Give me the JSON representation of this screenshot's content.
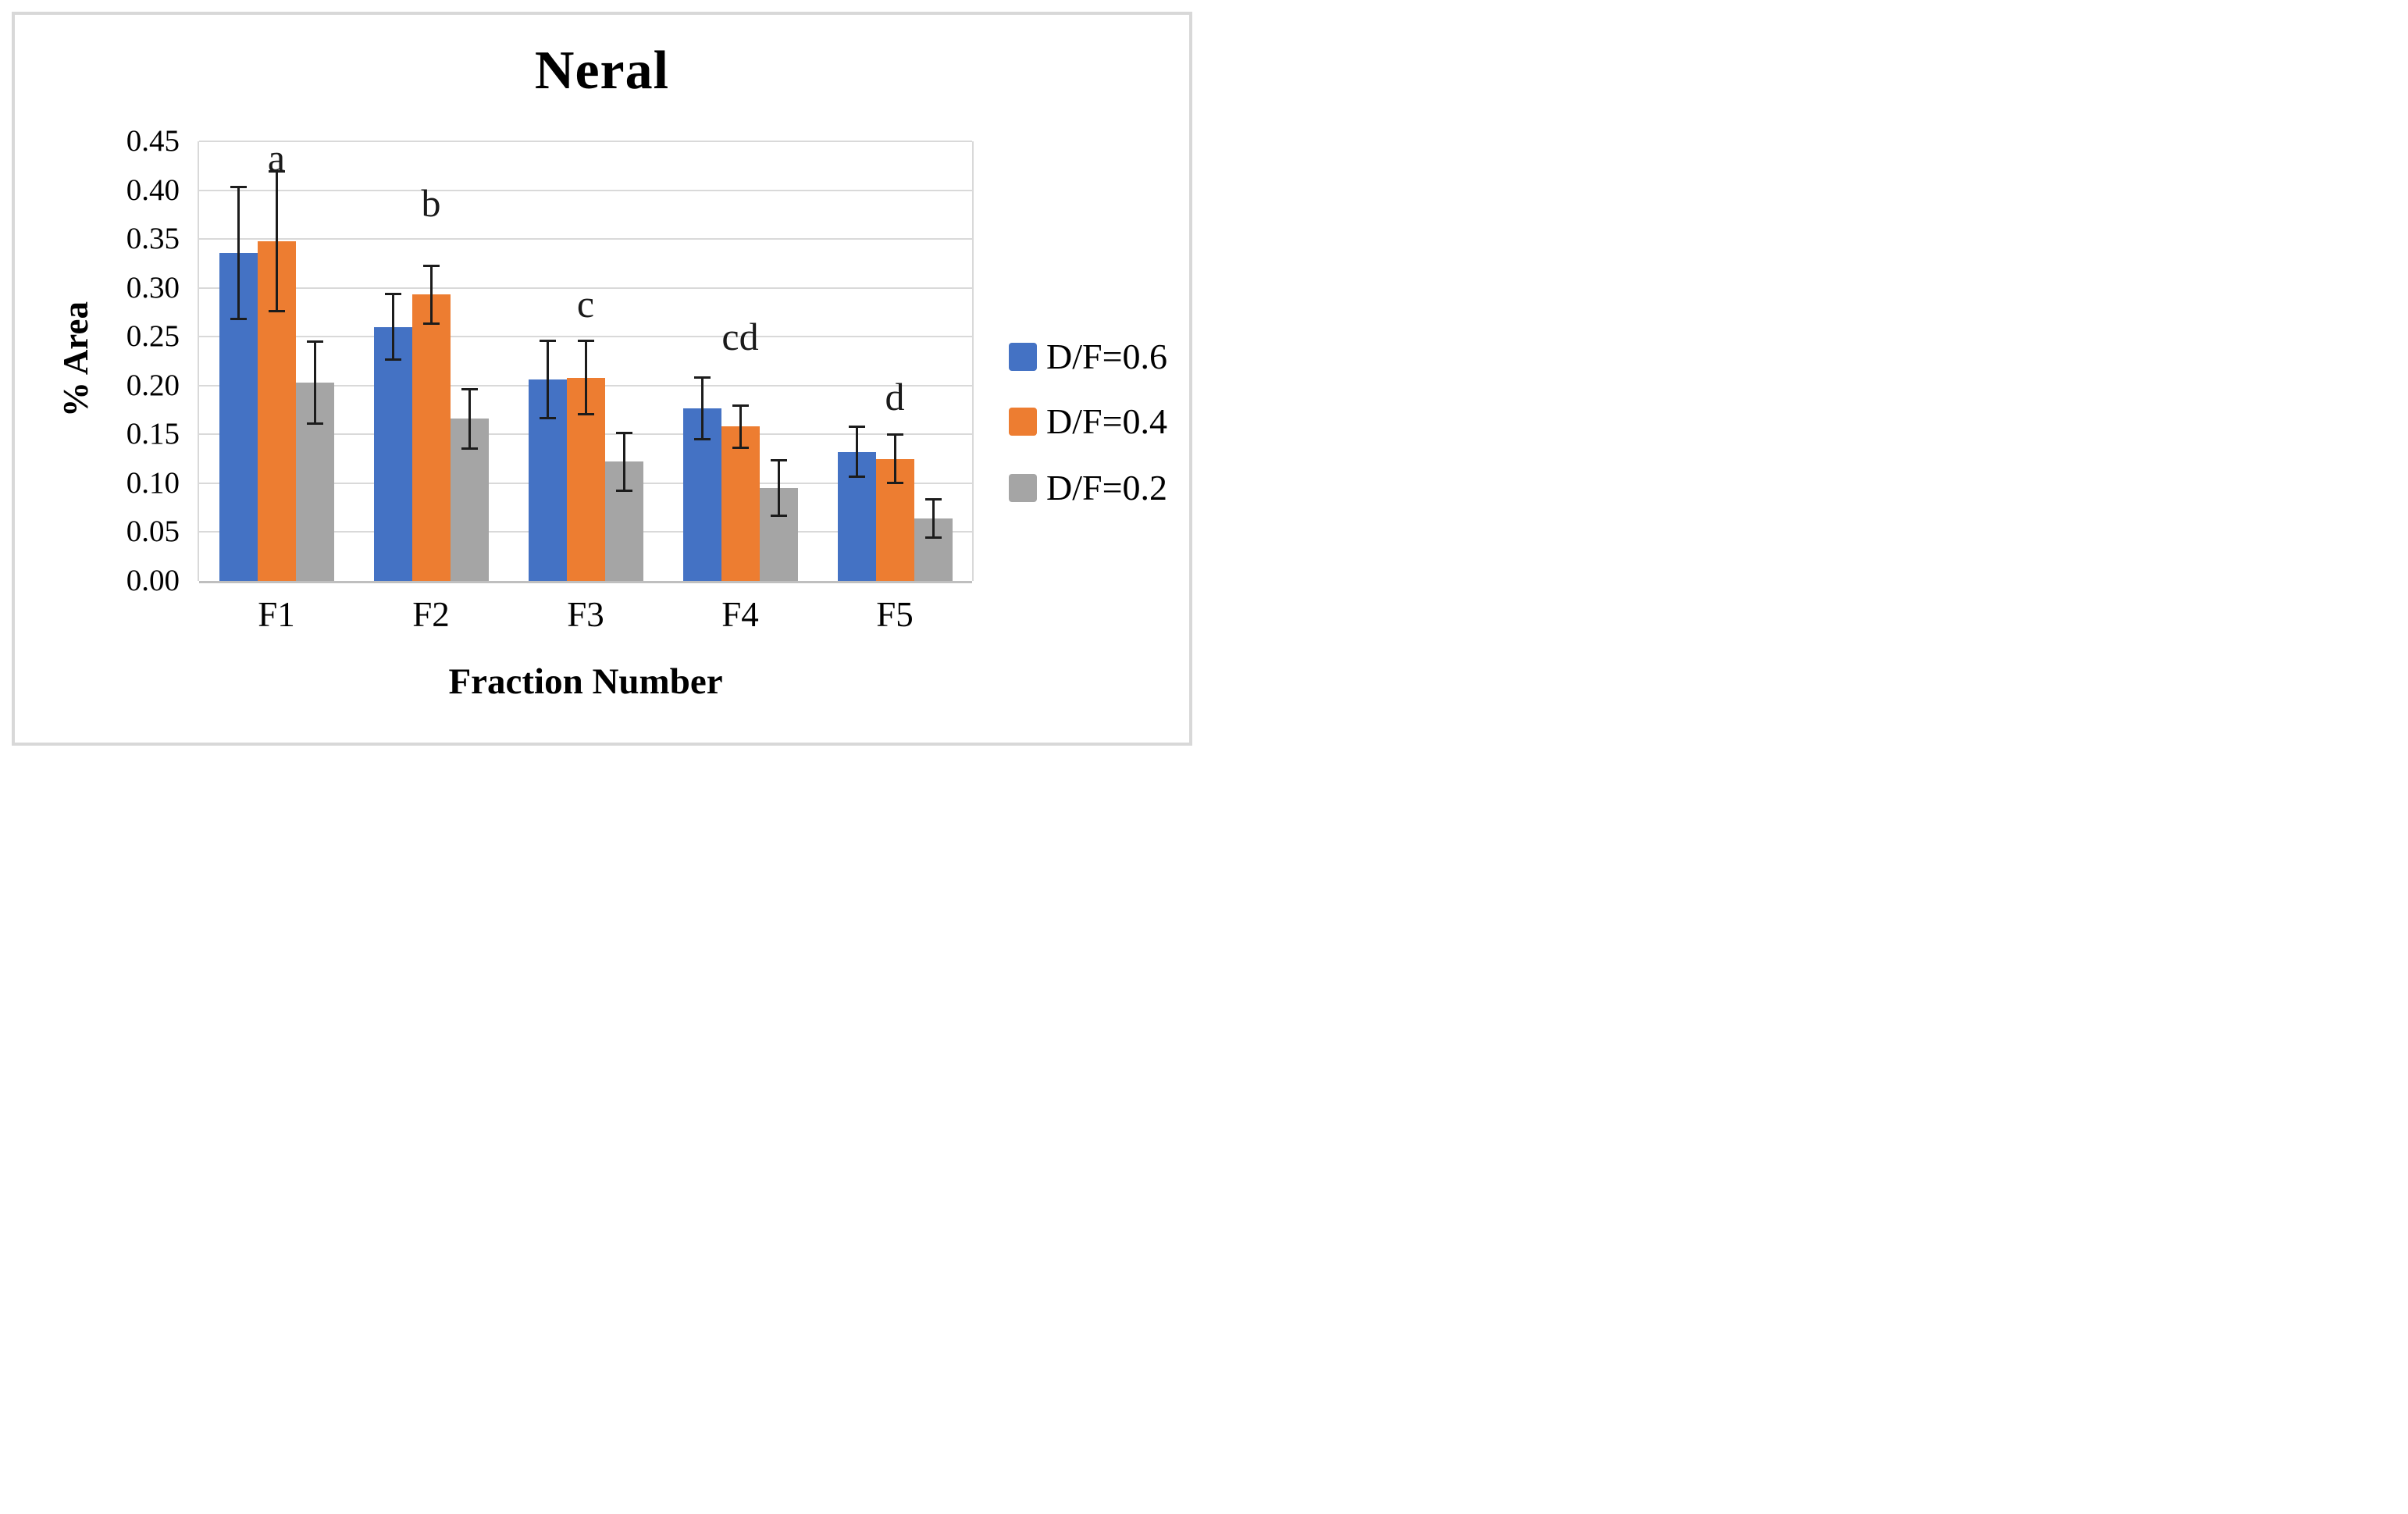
{
  "chart_data": {
    "type": "bar",
    "title": "Neral",
    "xlabel": "Fraction Number",
    "ylabel": "% Area",
    "categories": [
      "F1",
      "F2",
      "F3",
      "F4",
      "F5"
    ],
    "series": [
      {
        "name": "D/F=0.6",
        "color": "#4472C4",
        "values": [
          0.336,
          0.26,
          0.206,
          0.177,
          0.132
        ],
        "errors": [
          0.068,
          0.034,
          0.04,
          0.032,
          0.026
        ]
      },
      {
        "name": "D/F=0.4",
        "color": "#ED7D31",
        "values": [
          0.348,
          0.293,
          0.208,
          0.158,
          0.125
        ],
        "errors": [
          0.072,
          0.03,
          0.038,
          0.022,
          0.025
        ]
      },
      {
        "name": "D/F=0.2",
        "color": "#A5A5A5",
        "values": [
          0.203,
          0.166,
          0.122,
          0.095,
          0.064
        ],
        "errors": [
          0.042,
          0.031,
          0.03,
          0.029,
          0.02
        ]
      }
    ],
    "ylim": [
      0,
      0.45
    ],
    "ytick_step": 0.05,
    "ytick_labels": [
      "0.00",
      "0.05",
      "0.10",
      "0.15",
      "0.20",
      "0.25",
      "0.30",
      "0.35",
      "0.40",
      "0.45"
    ],
    "grid": true,
    "error_bars": true,
    "legend_position": "right",
    "annotations": [
      {
        "text": "a",
        "category": "F1",
        "y": 0.433
      },
      {
        "text": "b",
        "category": "F2",
        "y": 0.387
      },
      {
        "text": "c",
        "category": "F3",
        "y": 0.284
      },
      {
        "text": "cd",
        "category": "F4",
        "y": 0.25
      },
      {
        "text": "d",
        "category": "F5",
        "y": 0.189
      }
    ]
  },
  "legend": {
    "items": [
      {
        "label": "D/F=0.6",
        "color": "#4472C4"
      },
      {
        "label": "D/F=0.4",
        "color": "#ED7D31"
      },
      {
        "label": "D/F=0.2",
        "color": "#A5A5A5"
      }
    ]
  },
  "colors": {
    "gridline": "#D9D9D9",
    "axis_line": "#BFBFBF",
    "error_bar": "#1C1C1C",
    "frame": "#D8D8D8",
    "text": "#000000",
    "background": "#FFFFFF"
  }
}
